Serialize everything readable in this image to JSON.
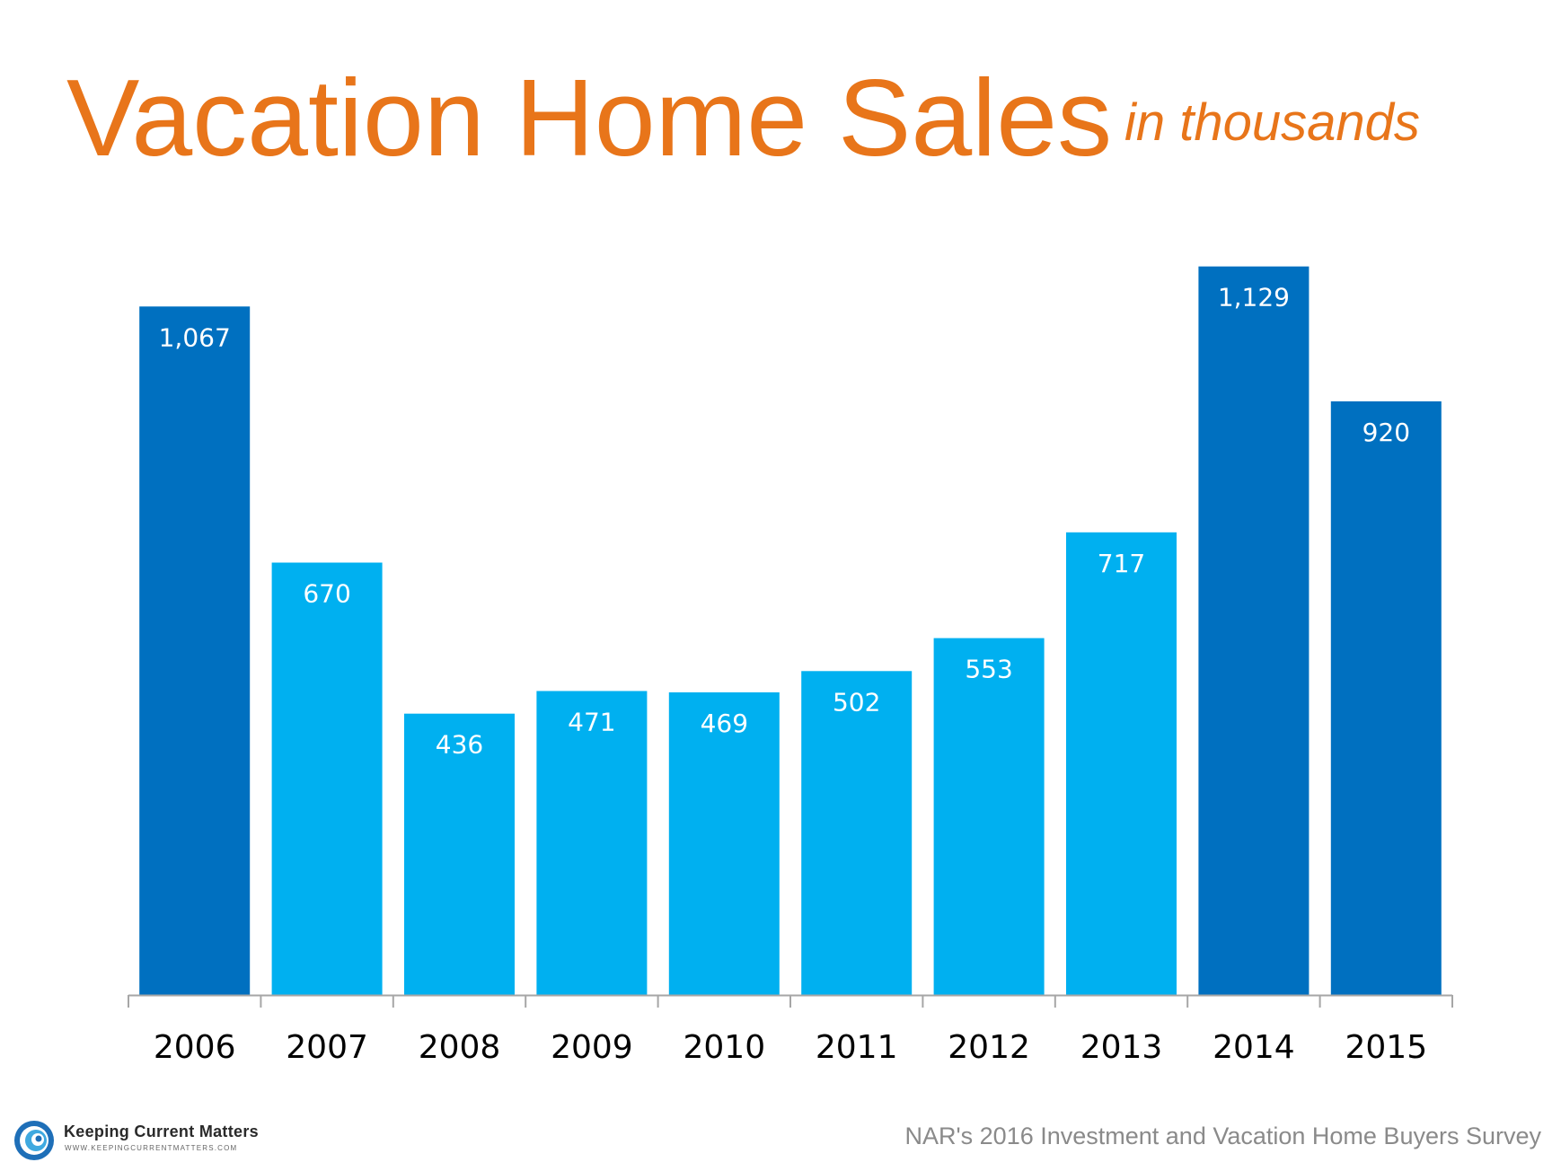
{
  "slide": {
    "title": "Vacation Home Sales",
    "subtitle": "in thousands",
    "source": "NAR's 2016 Investment and Vacation Home Buyers Survey",
    "logo_name": "Keeping Current Matters",
    "logo_url": "WWW.KEEPINGCURRENTMATTERS.COM",
    "logo_icon": "swirl-icon"
  },
  "colors": {
    "title": "#E8751A",
    "bar_dark": "#0070C0",
    "bar_light": "#00B0F0",
    "label": "#ffffff",
    "axis": "#A6A6A6",
    "tick_text": "#000000"
  },
  "chart_data": {
    "type": "bar",
    "title": "Vacation Home Sales",
    "subtitle": "in thousands",
    "xlabel": "",
    "ylabel": "",
    "categories": [
      "2006",
      "2007",
      "2008",
      "2009",
      "2010",
      "2011",
      "2012",
      "2013",
      "2014",
      "2015"
    ],
    "values": [
      1067,
      670,
      436,
      471,
      469,
      502,
      553,
      717,
      1129,
      920
    ],
    "data_labels": [
      "1,067",
      "670",
      "436",
      "471",
      "469",
      "502",
      "553",
      "717",
      "1,129",
      "920"
    ],
    "highlight": [
      true,
      false,
      false,
      false,
      false,
      false,
      false,
      false,
      true,
      true
    ],
    "ylim": [
      0,
      1130
    ],
    "grid": false,
    "legend": "none"
  }
}
